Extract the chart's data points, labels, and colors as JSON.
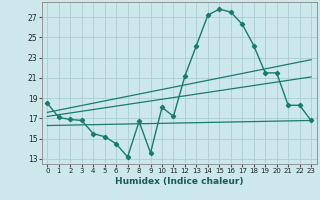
{
  "xlabel": "Humidex (Indice chaleur)",
  "xlim": [
    -0.5,
    23.5
  ],
  "ylim": [
    12.5,
    28.5
  ],
  "xticks": [
    0,
    1,
    2,
    3,
    4,
    5,
    6,
    7,
    8,
    9,
    10,
    11,
    12,
    13,
    14,
    15,
    16,
    17,
    18,
    19,
    20,
    21,
    22,
    23
  ],
  "yticks": [
    13,
    15,
    17,
    19,
    21,
    23,
    25,
    27
  ],
  "bg_color": "#cce8ec",
  "grid_color": "#aacdd4",
  "line_color": "#1a7a6e",
  "curve1_x": [
    0,
    1,
    2,
    3,
    4,
    5,
    6,
    7,
    8,
    9,
    10,
    11,
    12,
    13,
    14,
    15,
    16,
    17,
    18,
    19,
    20,
    21,
    22,
    23
  ],
  "curve1_y": [
    18.5,
    17.1,
    16.9,
    16.8,
    15.5,
    15.2,
    14.5,
    13.2,
    16.7,
    13.6,
    18.1,
    17.2,
    21.2,
    24.2,
    27.2,
    27.8,
    27.5,
    26.3,
    24.2,
    21.5,
    21.5,
    18.3,
    18.3,
    16.8
  ],
  "trend1_x": [
    0,
    23
  ],
  "trend1_y": [
    17.6,
    22.8
  ],
  "trend2_x": [
    0,
    23
  ],
  "trend2_y": [
    17.2,
    21.1
  ],
  "trend3_x": [
    0,
    23
  ],
  "trend3_y": [
    16.3,
    16.8
  ]
}
